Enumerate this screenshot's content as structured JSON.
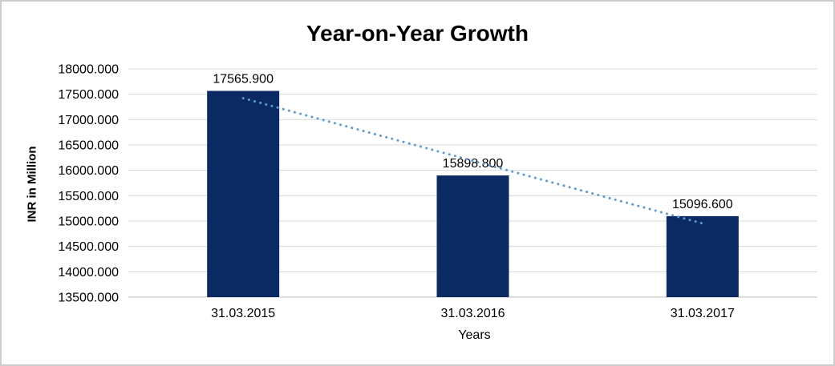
{
  "chart": {
    "title": "Year-on-Year Growth",
    "y_axis_title": "INR in Million",
    "x_axis_title": "Years"
  },
  "chart_data": {
    "type": "bar",
    "title": "Year-on-Year Growth",
    "xlabel": "Years",
    "ylabel": "INR in Million",
    "categories": [
      "31.03.2015",
      "31.03.2016",
      "31.03.2017"
    ],
    "values": [
      17565.9,
      15898.8,
      15096.6
    ],
    "data_labels": [
      "17565.900",
      "15898.800",
      "15096.600"
    ],
    "ylim": [
      13500,
      18000
    ],
    "ytick_step": 500,
    "ytick_labels": [
      "18000.000",
      "17500.000",
      "17000.000",
      "16500.000",
      "16000.000",
      "15500.000",
      "15000.000",
      "14500.000",
      "14000.000",
      "13500.000"
    ],
    "grid": true,
    "legend": "none",
    "trendline": {
      "type": "linear",
      "style": "dotted"
    },
    "colors": {
      "bar": "#0b2a63",
      "trendline": "#5b9bd5",
      "gridline": "#d9d9d9",
      "axis_line": "#bfbfbf",
      "text": "#000000",
      "frame_border": "#cccccc",
      "background": "#ffffff"
    }
  }
}
